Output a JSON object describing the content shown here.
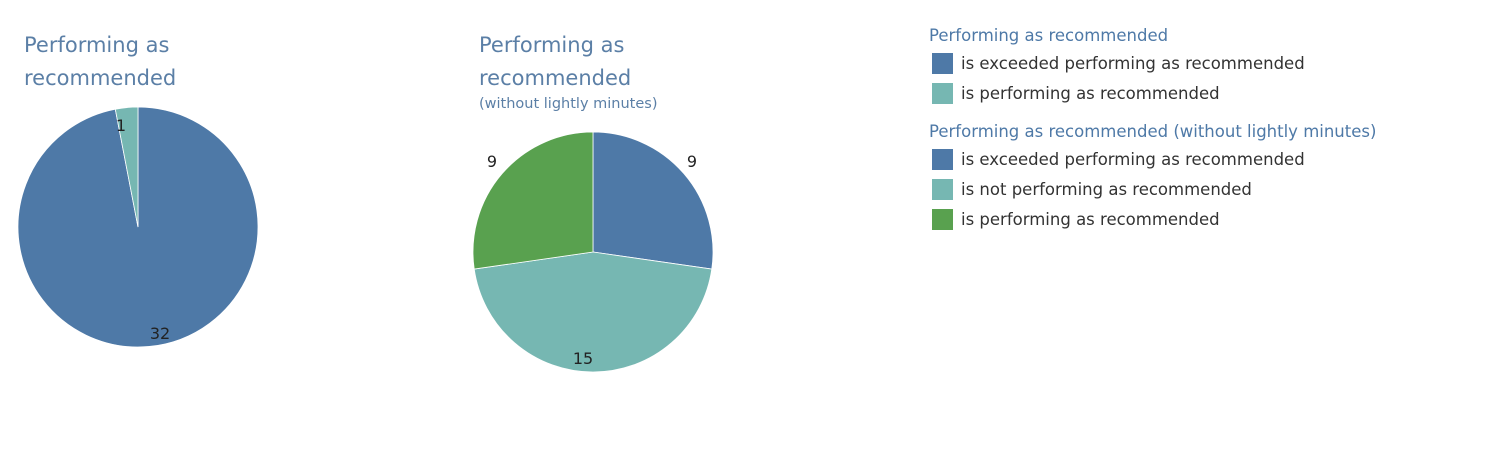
{
  "colors": {
    "exceeded": "#4e79a7",
    "not_performing": "#76b7b2",
    "performing": "#59a14f"
  },
  "chart_data": [
    {
      "type": "pie",
      "title": "Performing as recommended",
      "subtitle": "",
      "slices": [
        {
          "label": "is exceeded performing as recommended",
          "value": 32,
          "color": "#4e79a7"
        },
        {
          "label": "is performing as recommended",
          "value": 1,
          "color": "#76b7b2"
        }
      ]
    },
    {
      "type": "pie",
      "title": "Performing as recommended",
      "subtitle": "(without lightly minutes)",
      "slices": [
        {
          "label": "is exceeded performing as recommended",
          "value": 9,
          "color": "#4e79a7"
        },
        {
          "label": "is not performing as recommended",
          "value": 15,
          "color": "#76b7b2"
        },
        {
          "label": "is performing as recommended",
          "value": 9,
          "color": "#59a14f"
        }
      ]
    }
  ],
  "legend": [
    {
      "title": "Performing as recommended",
      "items": [
        {
          "label": "is exceeded performing as recommended",
          "color": "#4e79a7"
        },
        {
          "label": "is performing as recommended",
          "color": "#76b7b2"
        }
      ]
    },
    {
      "title": "Performing as recommended (without lightly minutes)",
      "items": [
        {
          "label": "is exceeded performing as recommended",
          "color": "#4e79a7"
        },
        {
          "label": "is not performing as recommended",
          "color": "#76b7b2"
        },
        {
          "label": "is performing as recommended",
          "color": "#59a14f"
        }
      ]
    }
  ]
}
